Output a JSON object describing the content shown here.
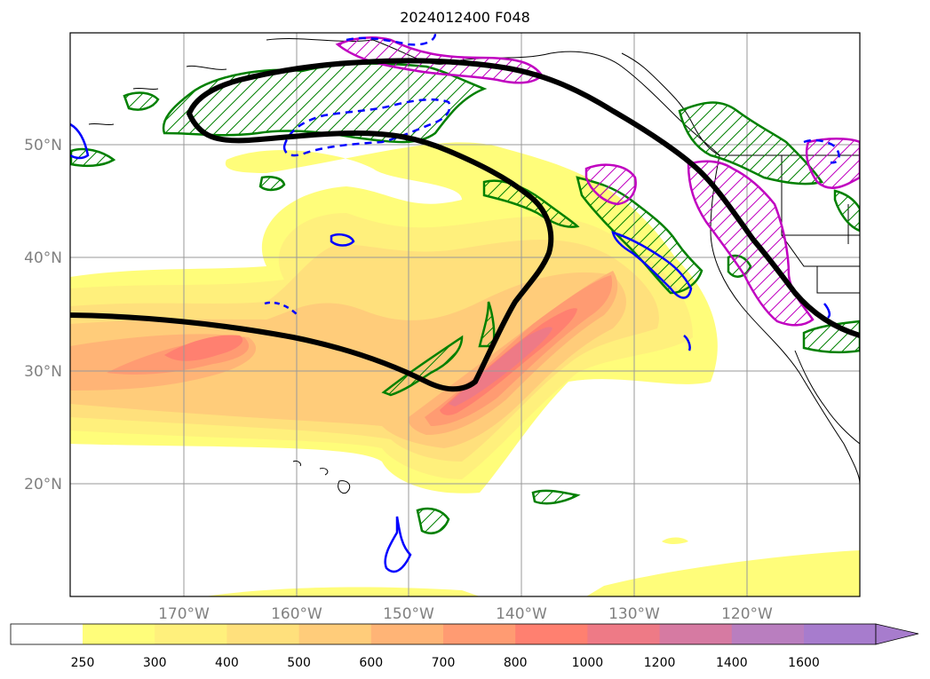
{
  "title": "2024012400 F048",
  "map": {
    "region": "North-East Pacific",
    "lon_range": [
      -180,
      -110
    ],
    "lat_range": [
      10,
      60
    ],
    "gridlines": true,
    "lat_labels": [
      "50°N",
      "40°N",
      "30°N",
      "20°N"
    ],
    "lon_labels": [
      "170°W",
      "160°W",
      "150°W",
      "140°W",
      "130°W",
      "120°W"
    ]
  },
  "colorbar": {
    "levels": [
      "250",
      "300",
      "400",
      "500",
      "600",
      "700",
      "800",
      "1000",
      "1200",
      "1400",
      "1600"
    ],
    "colors": [
      "#ffffff",
      "#fffd7a",
      "#fff07c",
      "#ffe07c",
      "#ffcc7a",
      "#ffb476",
      "#ff9b72",
      "#ff8070",
      "#ee7a86",
      "#d67aa2",
      "#b97ebf",
      "#a77ccd"
    ],
    "extend": "max"
  },
  "contour_colors": {
    "thick_line": "#000000",
    "green_hatch": "#008000",
    "magenta_hatch": "#c000c0",
    "blue_line": "#0000ff"
  }
}
